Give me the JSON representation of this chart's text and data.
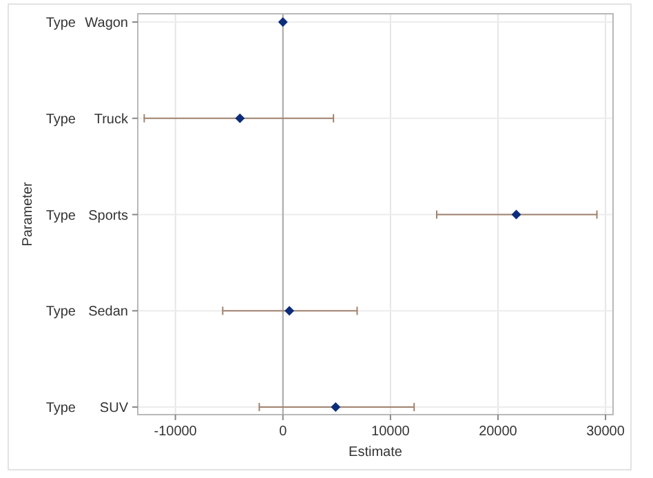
{
  "chart_data": {
    "type": "scatter",
    "orientation": "horizontal",
    "xlabel": "Estimate",
    "ylabel": "Parameter",
    "categories": [
      "Type Wagon",
      "Type Truck",
      "Type Sports",
      "Type Sedan",
      "Type SUV"
    ],
    "values": [
      0,
      -4000,
      21700,
      600,
      4900
    ],
    "errors": [
      null,
      [
        -12900,
        4700
      ],
      [
        14300,
        29200
      ],
      [
        -5600,
        6900
      ],
      [
        -2200,
        12200
      ]
    ],
    "color": "#0b2d7a",
    "marker": "diamond",
    "xlim": [
      -13500,
      30700
    ],
    "xticks": [
      -10000,
      0,
      10000,
      20000,
      30000
    ],
    "grid": true,
    "ref_lines": [
      {
        "axis": "x",
        "value": 0,
        "color": "#a8a8a8"
      }
    ]
  }
}
